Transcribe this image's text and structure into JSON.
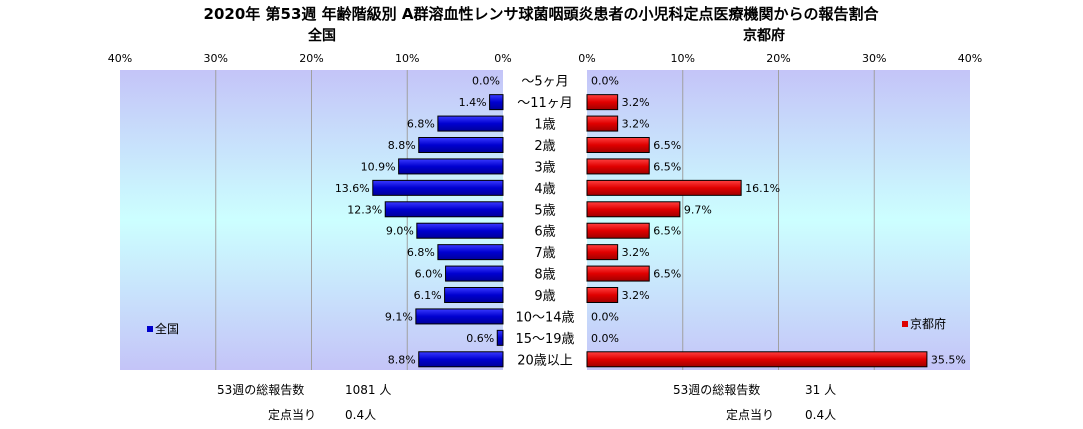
{
  "chart_data": {
    "type": "bar",
    "title": "2020年 第53週 年齢階級別 A群溶血性レンサ球菌咽頭炎患者の小児科定点医療機関からの報告割合",
    "categories": [
      "～5ヶ月",
      "～11ヶ月",
      "1歳",
      "2歳",
      "3歳",
      "4歳",
      "5歳",
      "6歳",
      "7歳",
      "8歳",
      "9歳",
      "10～14歳",
      "15～19歳",
      "20歳以上"
    ],
    "xlim": [
      0,
      40
    ],
    "ticks": [
      "40%",
      "30%",
      "20%",
      "10%",
      "0%"
    ],
    "ticks_right": [
      "0%",
      "10%",
      "20%",
      "30%",
      "40%"
    ],
    "grid": true,
    "series": [
      {
        "name": "全国",
        "panel_title": "全国",
        "legend": "全国",
        "legend_position": "bottom-left",
        "color": "#0000cc",
        "values": [
          0.0,
          1.4,
          6.8,
          8.8,
          10.9,
          13.6,
          12.3,
          9.0,
          6.8,
          6.0,
          6.1,
          9.1,
          0.6,
          8.8
        ],
        "labels": [
          "0.0%",
          "1.4%",
          "6.8%",
          "8.8%",
          "10.9%",
          "13.6%",
          "12.3%",
          "9.0%",
          "6.8%",
          "6.0%",
          "6.1%",
          "9.1%",
          "0.6%",
          "8.8%"
        ]
      },
      {
        "name": "京都府",
        "panel_title": "京都府",
        "legend": "京都府",
        "legend_position": "bottom-right",
        "color": "#dd0000",
        "values": [
          0.0,
          3.2,
          3.2,
          6.5,
          6.5,
          16.1,
          9.7,
          6.5,
          3.2,
          6.5,
          3.2,
          0.0,
          0.0,
          35.5
        ],
        "labels": [
          "0.0%",
          "3.2%",
          "3.2%",
          "6.5%",
          "6.5%",
          "16.1%",
          "9.7%",
          "6.5%",
          "3.2%",
          "6.5%",
          "3.2%",
          "0.0%",
          "0.0%",
          "35.5%"
        ]
      }
    ]
  },
  "footer": {
    "left_reports_label": "53週の総報告数",
    "left_reports_value": "1081 人",
    "left_per_label": "定点当り",
    "left_per_value": "0.4人",
    "right_reports_label": "53週の総報告数",
    "right_reports_value": "31 人",
    "right_per_label": "定点当り",
    "right_per_value": "0.4人"
  },
  "colors": {
    "plot_top": "#c4c4f8",
    "plot_middle": "#ccffff",
    "plot_bottom": "#c4c4f8",
    "grid": "#a0a0a0"
  }
}
